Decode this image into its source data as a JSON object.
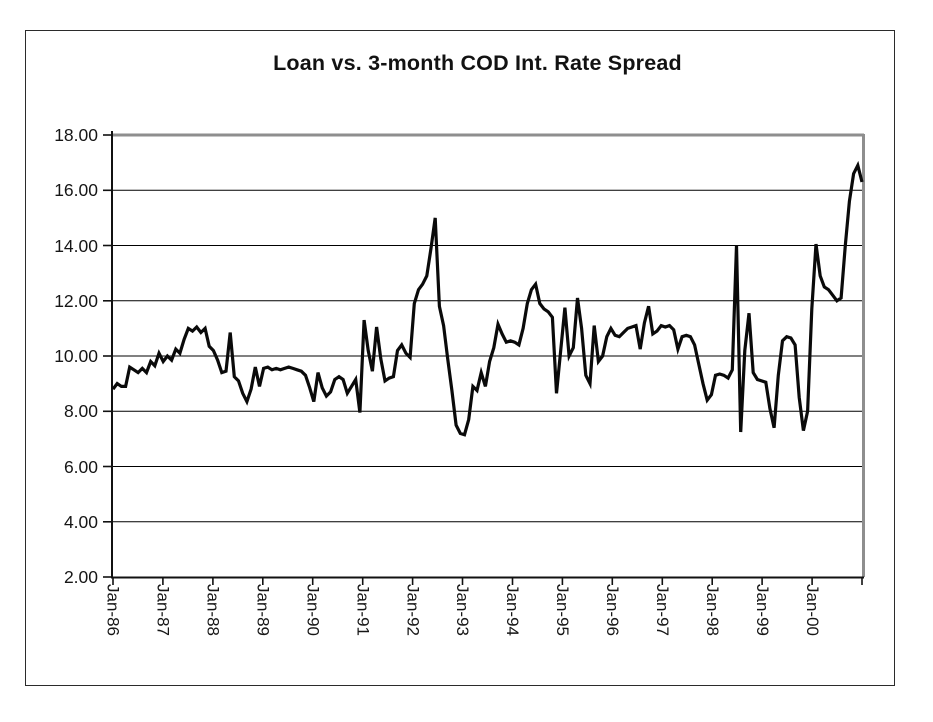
{
  "figure": {
    "title": "Loan vs. 3-month COD Int. Rate Spread"
  },
  "colors": {
    "series_line": "#0a0a0a",
    "gridline": "#000000",
    "plot_border_gray": "#8e8e8e",
    "axis": "#111111",
    "text": "#161616",
    "background": "#ffffff"
  },
  "chart_data": {
    "type": "line",
    "title": "Loan vs. 3-month COD Int. Rate Spread",
    "xlabel": "",
    "ylabel": "",
    "ylim": [
      2,
      18
    ],
    "grid": "horizontal",
    "legend": "none",
    "frequency": "monthly",
    "x_start_label": "Jan-86",
    "x_tick_labels": [
      "Jan-86",
      "Jan-87",
      "Jan-88",
      "Jan-89",
      "Jan-90",
      "Jan-91",
      "Jan-92",
      "Jan-93",
      "Jan-94",
      "Jan-95",
      "Jan-96",
      "Jan-97",
      "Jan-98",
      "Jan-99",
      "Jan-00"
    ],
    "y_tick_labels": [
      "18.00",
      "16.00",
      "14.00",
      "12.00",
      "10.00",
      "8.00",
      "6.00",
      "4.00",
      "2.00"
    ],
    "y_tick_values": [
      18,
      16,
      14,
      12,
      10,
      8,
      6,
      4,
      2
    ],
    "series": [
      {
        "name": "Loan vs. 3-month COD Int. Rate Spread",
        "values": [
          8.8,
          9.0,
          8.9,
          8.9,
          9.6,
          9.5,
          9.4,
          9.55,
          9.4,
          9.8,
          9.65,
          10.1,
          9.8,
          10.0,
          9.85,
          10.25,
          10.1,
          10.6,
          11.0,
          10.9,
          11.05,
          10.85,
          11.0,
          10.35,
          10.2,
          9.85,
          9.4,
          9.45,
          10.85,
          9.25,
          9.1,
          8.65,
          8.35,
          8.8,
          9.6,
          8.9,
          9.55,
          9.6,
          9.5,
          9.55,
          9.5,
          9.55,
          9.6,
          9.55,
          9.5,
          9.45,
          9.3,
          8.85,
          8.35,
          9.4,
          8.85,
          8.55,
          8.7,
          9.15,
          9.25,
          9.15,
          8.65,
          8.9,
          9.15,
          7.95,
          11.3,
          10.2,
          9.45,
          11.05,
          9.9,
          9.1,
          9.2,
          9.25,
          10.2,
          10.4,
          10.1,
          9.95,
          11.9,
          12.4,
          12.6,
          12.9,
          13.9,
          15.0,
          11.8,
          11.1,
          9.9,
          8.75,
          7.5,
          7.2,
          7.15,
          7.7,
          8.9,
          8.75,
          9.4,
          8.9,
          9.8,
          10.3,
          11.15,
          10.8,
          10.5,
          10.55,
          10.5,
          10.4,
          11.0,
          11.9,
          12.4,
          12.6,
          11.9,
          11.7,
          11.6,
          11.4,
          8.65,
          10.2,
          11.75,
          10.0,
          10.3,
          12.1,
          11.0,
          9.3,
          9.0,
          11.1,
          9.8,
          10.0,
          10.7,
          11.0,
          10.75,
          10.7,
          10.85,
          11.0,
          11.05,
          11.1,
          10.25,
          11.2,
          11.8,
          10.8,
          10.9,
          11.1,
          11.05,
          11.1,
          10.95,
          10.25,
          10.7,
          10.75,
          10.7,
          10.4,
          9.7,
          9.0,
          8.4,
          8.6,
          9.3,
          9.35,
          9.3,
          9.2,
          9.5,
          14.0,
          7.25,
          10.2,
          11.55,
          9.4,
          9.15,
          9.1,
          9.05,
          8.1,
          7.4,
          9.3,
          10.55,
          10.7,
          10.65,
          10.4,
          8.5,
          7.3,
          8.0,
          11.7,
          14.05,
          12.9,
          12.5,
          12.4,
          12.2,
          12.0,
          12.1,
          14.0,
          15.6,
          16.6,
          16.9,
          16.3
        ]
      }
    ]
  }
}
